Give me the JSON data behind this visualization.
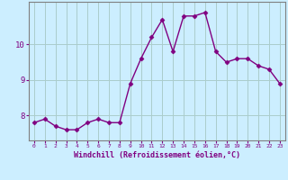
{
  "x": [
    0,
    1,
    2,
    3,
    4,
    5,
    6,
    7,
    8,
    9,
    10,
    11,
    12,
    13,
    14,
    15,
    16,
    17,
    18,
    19,
    20,
    21,
    22,
    23
  ],
  "y": [
    7.8,
    7.9,
    7.7,
    7.6,
    7.6,
    7.8,
    7.9,
    7.8,
    7.8,
    8.9,
    9.6,
    10.2,
    10.7,
    9.8,
    10.8,
    10.8,
    10.9,
    9.8,
    9.5,
    9.6,
    9.6,
    9.4,
    9.3,
    8.9
  ],
  "line_color": "#800080",
  "marker": "D",
  "marker_size": 2.5,
  "line_width": 1.0,
  "bg_color": "#cceeff",
  "grid_color": "#aacccc",
  "xlabel": "Windchill (Refroidissement éolien,°C)",
  "xlabel_color": "#800080",
  "tick_color": "#800080",
  "yticks": [
    8,
    9,
    10
  ],
  "xticks": [
    0,
    1,
    2,
    3,
    4,
    5,
    6,
    7,
    8,
    9,
    10,
    11,
    12,
    13,
    14,
    15,
    16,
    17,
    18,
    19,
    20,
    21,
    22,
    23
  ],
  "xlim": [
    -0.5,
    23.5
  ],
  "ylim": [
    7.3,
    11.2
  ]
}
